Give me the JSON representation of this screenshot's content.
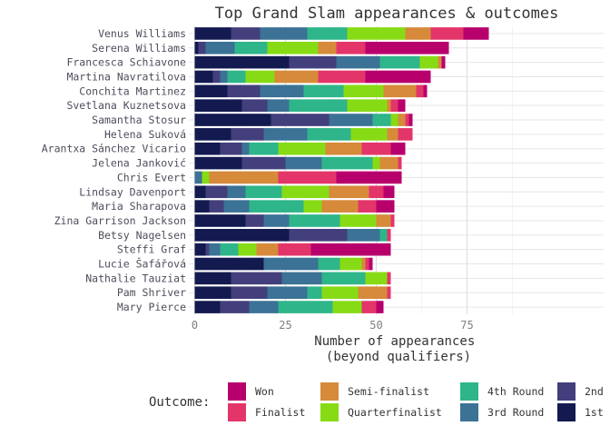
{
  "chart_data": {
    "type": "bar",
    "orientation": "horizontal",
    "stacked": true,
    "title": "Top Grand Slam appearances & outcomes",
    "xlabel": "Number of appearances\n(beyond qualifiers)",
    "ylabel": "",
    "xlim": [
      0,
      91
    ],
    "xticks": [
      0,
      25,
      50,
      75
    ],
    "grid": true,
    "legend_position": "bottom",
    "legend_title": "Outcome:",
    "players": [
      "Venus Williams",
      "Serena Williams",
      "Francesca Schiavone",
      "Martina Navratilova",
      "Conchita Martinez",
      "Svetlana Kuznetsova",
      "Samantha Stosur",
      "Helena Suková",
      "Arantxa Sánchez Vicario",
      "Jelena Janković",
      "Chris Evert",
      "Lindsay Davenport",
      "Maria Sharapova",
      "Zina Garrison Jackson",
      "Betsy Nagelsen",
      "Steffi Graf",
      "Lucie Šafářová",
      "Nathalie Tauziat",
      "Pam Shriver",
      "Mary Pierce"
    ],
    "stack_order": [
      "1st",
      "2nd",
      "3rd Round",
      "4th Round",
      "Quarterfinalist",
      "Semi-finalist",
      "Finalist",
      "Won"
    ],
    "series": [
      {
        "name": "1st",
        "color": "#131a4f",
        "values": [
          10,
          1,
          26,
          5,
          9,
          13,
          21,
          10,
          7,
          13,
          0,
          3,
          4,
          14,
          26,
          3,
          19,
          10,
          10,
          7
        ]
      },
      {
        "name": "2nd",
        "color": "#433f7c",
        "values": [
          8,
          2,
          13,
          2,
          9,
          7,
          16,
          9,
          6,
          12,
          0,
          6,
          4,
          5,
          16,
          1,
          0,
          14,
          10,
          8
        ]
      },
      {
        "name": "3rd Round",
        "color": "#3b7295",
        "values": [
          13,
          8,
          12,
          2,
          12,
          6,
          12,
          12,
          2,
          10,
          2,
          5,
          7,
          7,
          9,
          3,
          15,
          11,
          11,
          8
        ]
      },
      {
        "name": "4th Round",
        "color": "#2eb58a",
        "values": [
          11,
          9,
          11,
          5,
          11,
          16,
          5,
          12,
          8,
          14,
          0,
          10,
          15,
          14,
          2,
          5,
          6,
          12,
          4,
          15
        ]
      },
      {
        "name": "Quarterfinalist",
        "color": "#87db14",
        "values": [
          16,
          14,
          5,
          8,
          11,
          11,
          2,
          10,
          13,
          2,
          2,
          13,
          5,
          10,
          0,
          5,
          6,
          6,
          10,
          8
        ]
      },
      {
        "name": "Semi-finalist",
        "color": "#d68a3a",
        "values": [
          7,
          5,
          1,
          12,
          9,
          1,
          2,
          3,
          10,
          5,
          19,
          11,
          10,
          4,
          0,
          6,
          1,
          0,
          8,
          0
        ]
      },
      {
        "name": "Finalist",
        "color": "#e33569",
        "values": [
          9,
          8,
          0,
          13,
          2,
          2,
          1,
          4,
          8,
          1,
          16,
          4,
          5,
          1,
          1,
          9,
          1,
          1,
          1,
          4
        ]
      },
      {
        "name": "Won",
        "color": "#b8006d",
        "values": [
          7,
          23,
          1,
          18,
          1,
          2,
          1,
          0,
          4,
          0,
          18,
          3,
          5,
          0,
          0,
          22,
          1,
          0,
          0,
          2
        ]
      }
    ]
  },
  "legend_items": [
    {
      "name": "Won",
      "color": "#b8006d"
    },
    {
      "name": "Finalist",
      "color": "#e33569"
    },
    {
      "name": "Semi-finalist",
      "color": "#d68a3a"
    },
    {
      "name": "Quarterfinalist",
      "color": "#87db14"
    },
    {
      "name": "4th Round",
      "color": "#2eb58a"
    },
    {
      "name": "3rd Round",
      "color": "#3b7295"
    },
    {
      "name": "2nd",
      "color": "#433f7c"
    },
    {
      "name": "1st",
      "color": "#131a4f"
    }
  ]
}
